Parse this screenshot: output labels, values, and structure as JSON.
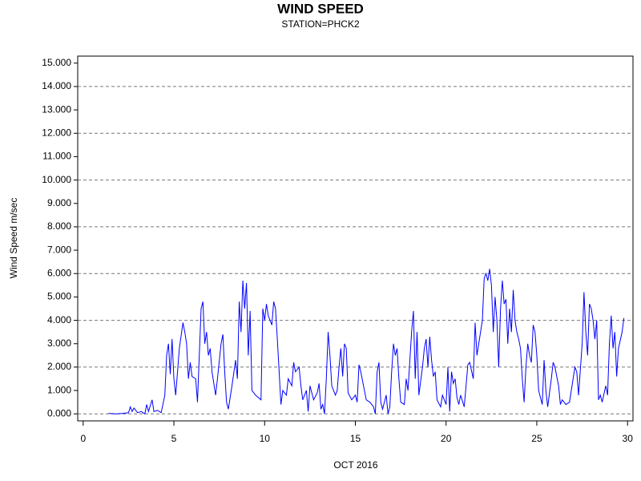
{
  "chart_data": {
    "type": "line",
    "title": "WIND SPEED",
    "subtitle": "STATION=PHCK2",
    "x_label": "OCT 2016",
    "y_label": "Wind Speed m/sec",
    "color": "#0000ff",
    "grid": true,
    "xlim": [
      -0.3,
      30.3
    ],
    "ylim": [
      -0.3,
      15.3
    ],
    "xticks": [
      0,
      5,
      10,
      15,
      20,
      25,
      30
    ],
    "yticks": [
      {
        "value": 0,
        "label": "0.000"
      },
      {
        "value": 1,
        "label": "1.000"
      },
      {
        "value": 2,
        "label": "2.000"
      },
      {
        "value": 3,
        "label": "3.000"
      },
      {
        "value": 4,
        "label": "4.000"
      },
      {
        "value": 5,
        "label": "5.000"
      },
      {
        "value": 6,
        "label": "6.000"
      },
      {
        "value": 7,
        "label": "7.000"
      },
      {
        "value": 8,
        "label": "8.000"
      },
      {
        "value": 9,
        "label": "9.000"
      },
      {
        "value": 10,
        "label": "10.000"
      },
      {
        "value": 11,
        "label": "11.000"
      },
      {
        "value": 12,
        "label": "12.000"
      },
      {
        "value": 13,
        "label": "13.000"
      },
      {
        "value": 14,
        "label": "14.000"
      },
      {
        "value": 15,
        "label": "15.000"
      }
    ],
    "x": [
      1.4,
      1.8,
      2.2,
      2.5,
      2.6,
      2.7,
      2.8,
      3.0,
      3.2,
      3.4,
      3.5,
      3.6,
      3.8,
      3.9,
      4.1,
      4.3,
      4.5,
      4.6,
      4.7,
      4.8,
      4.9,
      5.0,
      5.1,
      5.2,
      5.3,
      5.5,
      5.6,
      5.7,
      5.8,
      5.9,
      6.0,
      6.2,
      6.3,
      6.5,
      6.6,
      6.7,
      6.8,
      6.9,
      7.0,
      7.1,
      7.3,
      7.4,
      7.6,
      7.7,
      7.8,
      7.9,
      8.0,
      8.2,
      8.4,
      8.5,
      8.6,
      8.7,
      8.8,
      8.9,
      9.0,
      9.1,
      9.2,
      9.3,
      9.5,
      9.8,
      9.9,
      10.0,
      10.1,
      10.2,
      10.4,
      10.5,
      10.6,
      10.7,
      10.8,
      10.9,
      11.0,
      11.2,
      11.3,
      11.5,
      11.6,
      11.7,
      11.9,
      12.0,
      12.1,
      12.3,
      12.4,
      12.5,
      12.7,
      12.9,
      13.0,
      13.1,
      13.2,
      13.3,
      13.4,
      13.5,
      13.6,
      13.7,
      13.9,
      14.0,
      14.1,
      14.2,
      14.3,
      14.4,
      14.5,
      14.6,
      14.8,
      15.0,
      15.1,
      15.2,
      15.3,
      15.5,
      15.6,
      15.8,
      16.0,
      16.1,
      16.2,
      16.3,
      16.4,
      16.5,
      16.7,
      16.8,
      16.9,
      17.0,
      17.1,
      17.2,
      17.3,
      17.4,
      17.5,
      17.7,
      17.8,
      17.9,
      18.1,
      18.2,
      18.3,
      18.4,
      18.5,
      18.7,
      18.8,
      18.9,
      19.0,
      19.1,
      19.2,
      19.3,
      19.4,
      19.5,
      19.7,
      19.8,
      20.0,
      20.1,
      20.2,
      20.3,
      20.4,
      20.5,
      20.6,
      20.7,
      20.8,
      21.0,
      21.2,
      21.3,
      21.5,
      21.6,
      21.7,
      21.8,
      21.9,
      22.0,
      22.1,
      22.2,
      22.3,
      22.4,
      22.5,
      22.6,
      22.7,
      22.8,
      22.9,
      23.0,
      23.1,
      23.2,
      23.3,
      23.4,
      23.5,
      23.6,
      23.7,
      23.8,
      23.9,
      24.0,
      24.1,
      24.2,
      24.3,
      24.4,
      24.5,
      24.6,
      24.7,
      24.8,
      24.9,
      25.0,
      25.1,
      25.3,
      25.4,
      25.5,
      25.6,
      25.8,
      25.9,
      26.0,
      26.2,
      26.3,
      26.4,
      26.6,
      26.8,
      27.0,
      27.1,
      27.2,
      27.3,
      27.5,
      27.6,
      27.7,
      27.8,
      27.9,
      28.0,
      28.1,
      28.2,
      28.3,
      28.4,
      28.5,
      28.6,
      28.8,
      28.9,
      29.0,
      29.1,
      29.2,
      29.3,
      29.4,
      29.5,
      29.7,
      29.8
    ],
    "values": [
      0.02,
      0,
      0.02,
      0.05,
      0.3,
      0.1,
      0.25,
      0.05,
      0.1,
      0,
      0.4,
      0.1,
      0.6,
      0.1,
      0.15,
      0.05,
      0.8,
      2.5,
      3,
      1.7,
      3.2,
      1.5,
      0.8,
      1.8,
      2.8,
      3.9,
      3.5,
      3,
      1.5,
      2.2,
      1.6,
      1.5,
      0.5,
      4.5,
      4.8,
      3,
      3.5,
      2.5,
      2.8,
      1.8,
      0.8,
      1.5,
      3,
      3.4,
      1.8,
      0.5,
      0.2,
      1.2,
      2.3,
      1.5,
      4.8,
      3.5,
      5.7,
      4.5,
      5.6,
      2.5,
      4.4,
      1,
      0.8,
      0.6,
      4.5,
      4,
      4.7,
      4.2,
      3.8,
      4.8,
      4.5,
      3.2,
      1.8,
      0.4,
      1,
      0.8,
      1.5,
      1.2,
      2.2,
      1.8,
      2,
      1.2,
      0.6,
      1,
      0.1,
      1.2,
      0.6,
      0.9,
      1.3,
      0.2,
      0.4,
      0,
      1.5,
      3.5,
      2.5,
      1.2,
      0.8,
      1,
      2,
      2.8,
      1.6,
      3,
      2.8,
      0.9,
      0.6,
      0.8,
      0.5,
      2.1,
      1.8,
      1,
      0.6,
      0.5,
      0.3,
      0,
      1.8,
      2.2,
      0.5,
      0.2,
      0.8,
      0,
      0.3,
      1.8,
      3,
      2.5,
      2.8,
      1.5,
      0.5,
      0.4,
      1.5,
      1,
      3.5,
      4.4,
      1.5,
      3.5,
      0.8,
      2,
      2.8,
      3.2,
      2,
      3.3,
      2.3,
      1.6,
      1.8,
      0.6,
      0.3,
      0.8,
      0.4,
      2,
      0.1,
      1.8,
      1.3,
      1.5,
      0.7,
      0.4,
      0.8,
      0.3,
      2.1,
      2.2,
      1.5,
      3.9,
      2.5,
      3,
      3.5,
      4,
      5.8,
      6,
      5.7,
      6.2,
      5.5,
      3.5,
      5,
      4,
      2,
      4.5,
      5.7,
      4.7,
      4.9,
      3,
      4.5,
      3.5,
      5.3,
      4,
      3.5,
      3.2,
      2.8,
      1.5,
      0.5,
      2,
      3,
      2.5,
      2.2,
      3.8,
      3.5,
      2.5,
      1,
      0.4,
      2.3,
      1,
      0.3,
      1.5,
      2.2,
      2,
      1.2,
      0.4,
      0.6,
      0.4,
      0.5,
      1.5,
      2,
      1.8,
      0.8,
      3,
      5.2,
      3.5,
      2.5,
      4.7,
      4.5,
      4,
      3.2,
      4,
      0.6,
      0.8,
      0.5,
      1.2,
      0.8,
      3,
      4.2,
      2.8,
      3.5,
      1.6,
      2.8,
      3.5,
      4.1
    ]
  }
}
